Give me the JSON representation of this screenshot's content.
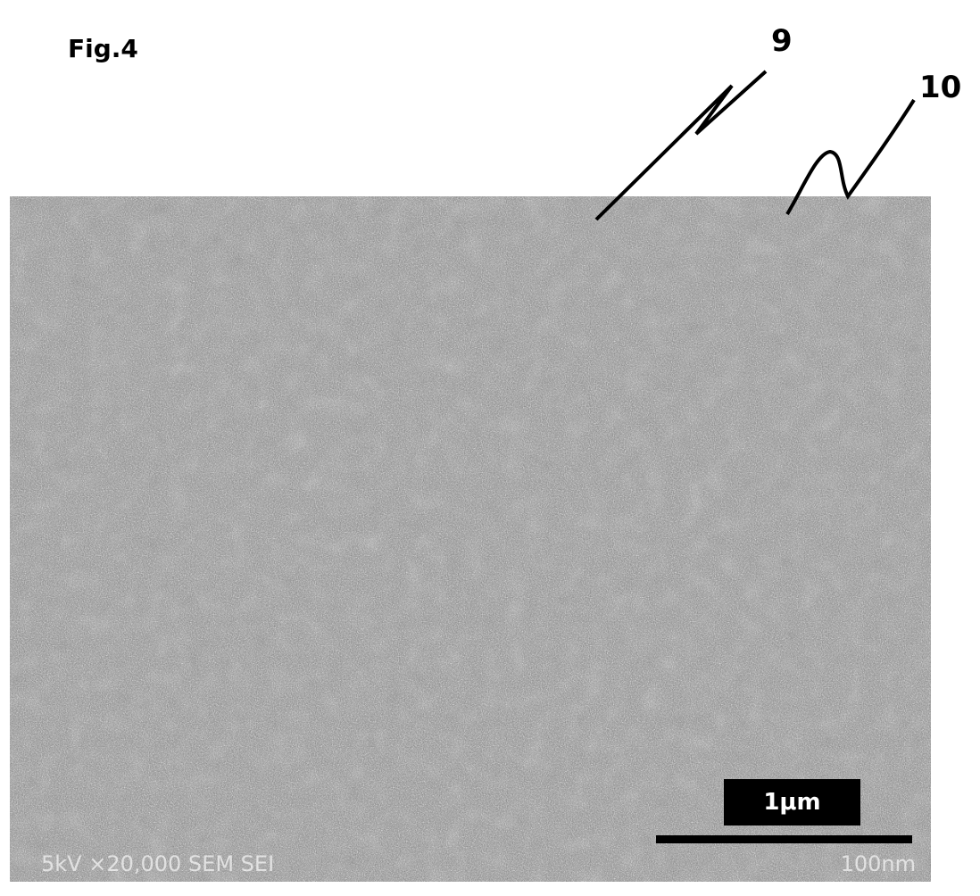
{
  "figure": {
    "label": "Fig.4",
    "references": [
      {
        "id": "9",
        "label": "9"
      },
      {
        "id": "10",
        "label": "10"
      }
    ]
  },
  "micrograph": {
    "scale_bar_label": "1μm",
    "info_left": "5kV  ×20,000  SEM  SEI",
    "info_right": "100nm"
  }
}
